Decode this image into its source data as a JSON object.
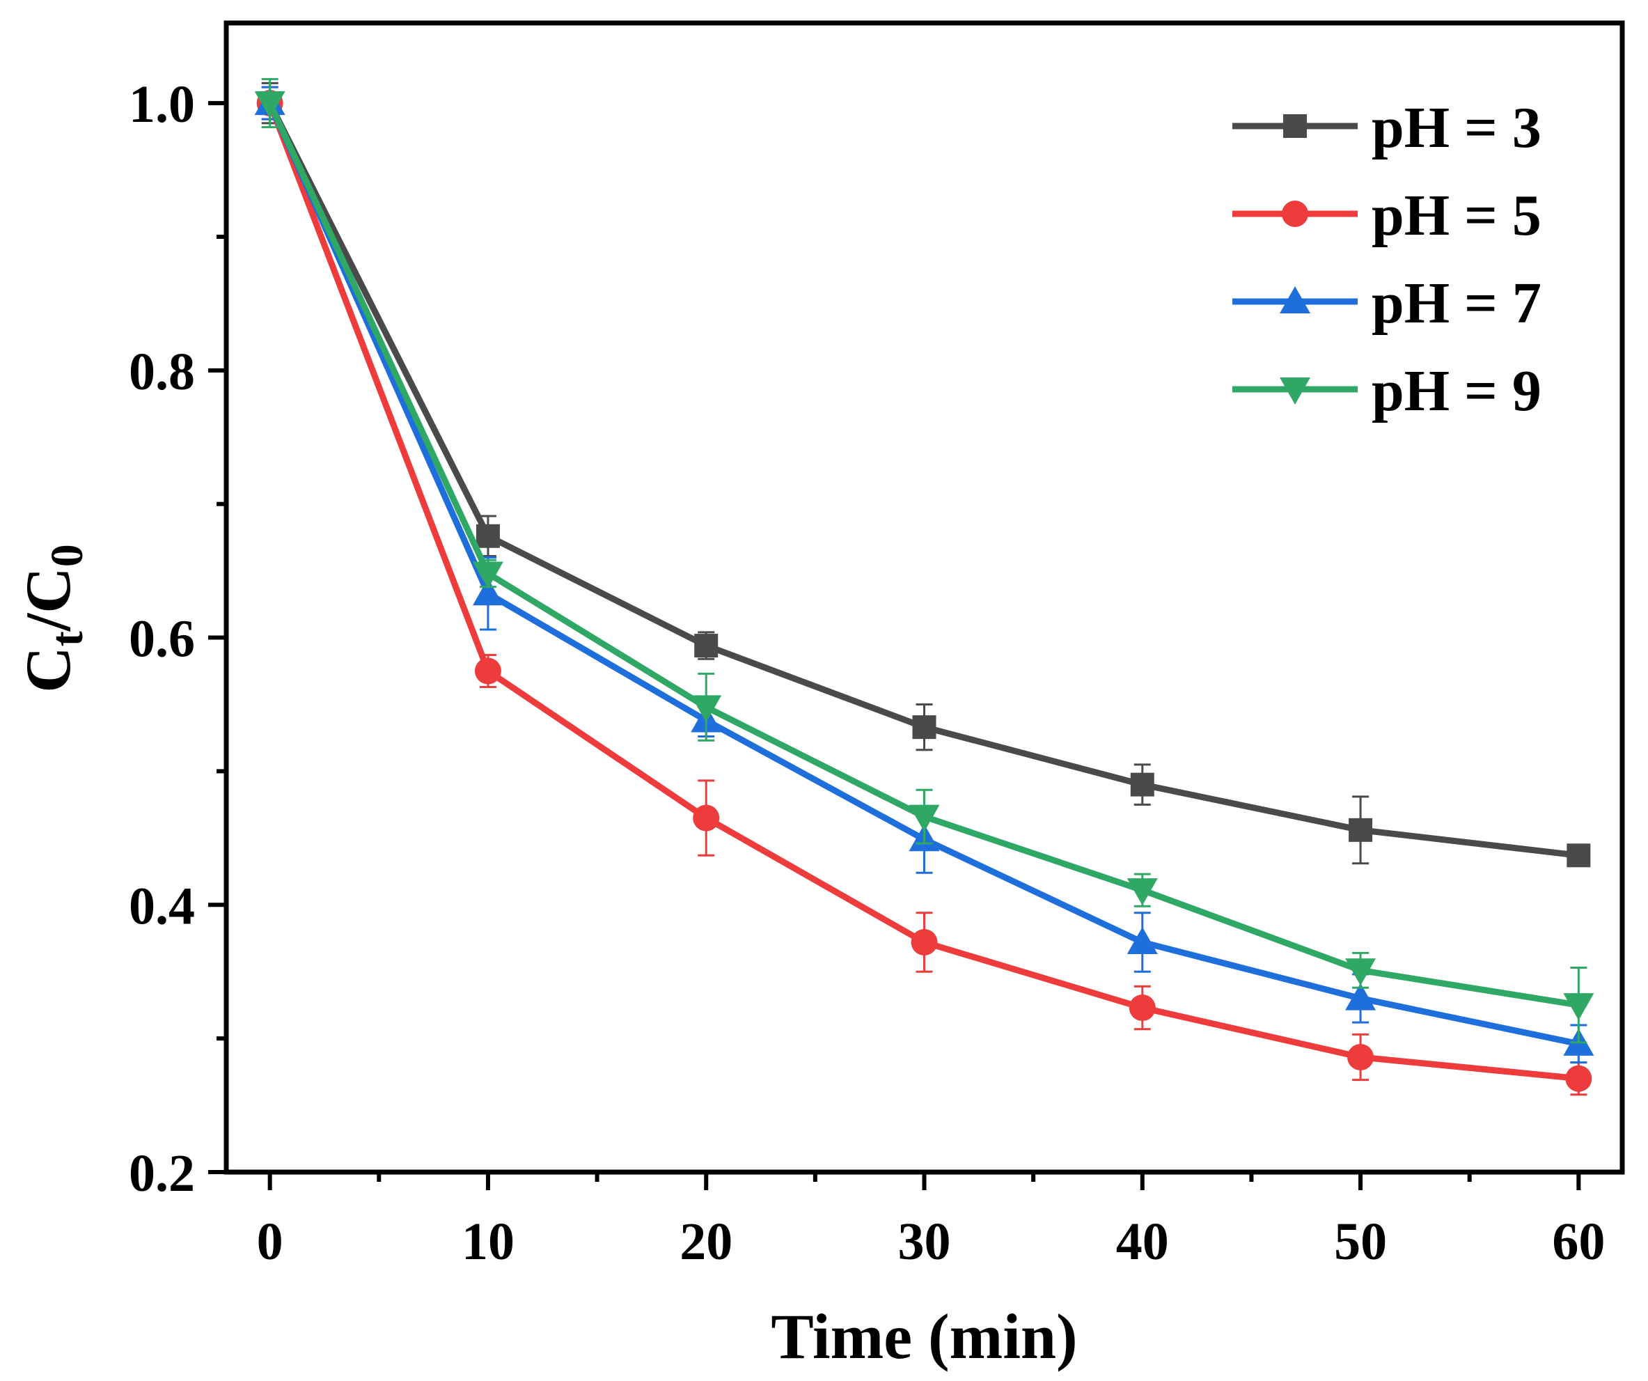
{
  "chart_data": {
    "type": "line",
    "title": "",
    "xlabel": "Time (min)",
    "ylabel": "Ct/C0",
    "ylabel_parts": {
      "main1": "C",
      "sub1": "t",
      "slash": "/",
      "main2": "C",
      "sub2": "0"
    },
    "x": [
      0,
      10,
      20,
      30,
      40,
      50,
      60
    ],
    "xlim": [
      -2,
      62
    ],
    "ylim": [
      0.2,
      1.06
    ],
    "xticks": [
      0,
      10,
      20,
      30,
      40,
      50,
      60
    ],
    "xtick_labels": [
      "0",
      "10",
      "20",
      "30",
      "40",
      "50",
      "60"
    ],
    "xminor": [
      5,
      15,
      25,
      35,
      45,
      55
    ],
    "yticks": [
      0.2,
      0.4,
      0.6,
      0.8,
      1.0
    ],
    "ytick_labels": [
      "0.2",
      "0.4",
      "0.6",
      "0.8",
      "1.0"
    ],
    "yminor": [
      0.3,
      0.5,
      0.7,
      0.9
    ],
    "grid": false,
    "legend_position": "top-right",
    "series": [
      {
        "name": "pH = 3",
        "color": "#4a4a4a",
        "marker": "square",
        "values": [
          1.0,
          0.676,
          0.594,
          0.533,
          0.49,
          0.456,
          0.437
        ],
        "errors": [
          0.015,
          0.015,
          0.01,
          0.017,
          0.015,
          0.025,
          0.0
        ]
      },
      {
        "name": "pH = 5",
        "color": "#ee3b3b",
        "marker": "circle",
        "values": [
          1.0,
          0.575,
          0.465,
          0.372,
          0.323,
          0.286,
          0.27
        ],
        "errors": [
          0.012,
          0.012,
          0.028,
          0.022,
          0.016,
          0.017,
          0.012
        ]
      },
      {
        "name": "pH = 7",
        "color": "#1e6fdc",
        "marker": "triangle-up",
        "values": [
          1.0,
          0.633,
          0.538,
          0.449,
          0.372,
          0.33,
          0.296
        ],
        "errors": [
          0.012,
          0.027,
          0.012,
          0.025,
          0.022,
          0.018,
          0.014
        ]
      },
      {
        "name": "pH = 9",
        "color": "#2fa866",
        "marker": "triangle-down",
        "values": [
          1.0,
          0.648,
          0.548,
          0.466,
          0.411,
          0.351,
          0.325
        ],
        "errors": [
          0.018,
          0.01,
          0.025,
          0.02,
          0.012,
          0.013,
          0.028
        ]
      }
    ]
  }
}
